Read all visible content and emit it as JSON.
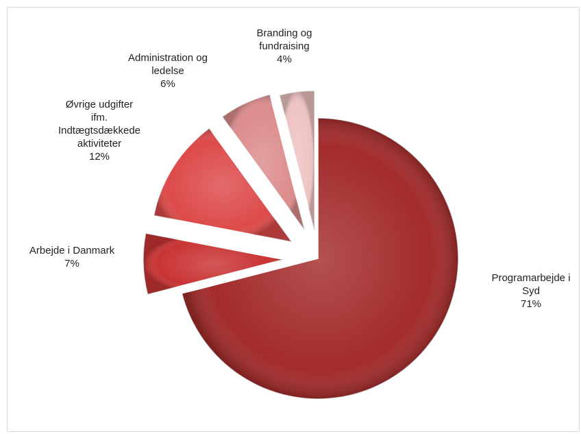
{
  "chart_data": {
    "type": "pie",
    "style": "exploded 3D-shaded pie",
    "slices": [
      {
        "label_lines": [
          "Programarbejde i",
          "Syd"
        ],
        "value": 71,
        "value_label": "71%",
        "color": "#a32b2b"
      },
      {
        "label_lines": [
          "Arbejde i Danmark"
        ],
        "value": 7,
        "value_label": "7%",
        "color": "#c93434"
      },
      {
        "label_lines": [
          "Øvrige udgifter",
          "ifm.",
          "Indtægtsdækkede",
          "aktiviteter"
        ],
        "value": 12,
        "value_label": "12%",
        "color": "#dd4a4a"
      },
      {
        "label_lines": [
          "Administration og",
          "ledelse"
        ],
        "value": 6,
        "value_label": "6%",
        "color": "#dc8c8c"
      },
      {
        "label_lines": [
          "Branding og",
          "fundraising"
        ],
        "value": 4,
        "value_label": "4%",
        "color": "#efc3c3"
      }
    ],
    "legend": "none"
  }
}
